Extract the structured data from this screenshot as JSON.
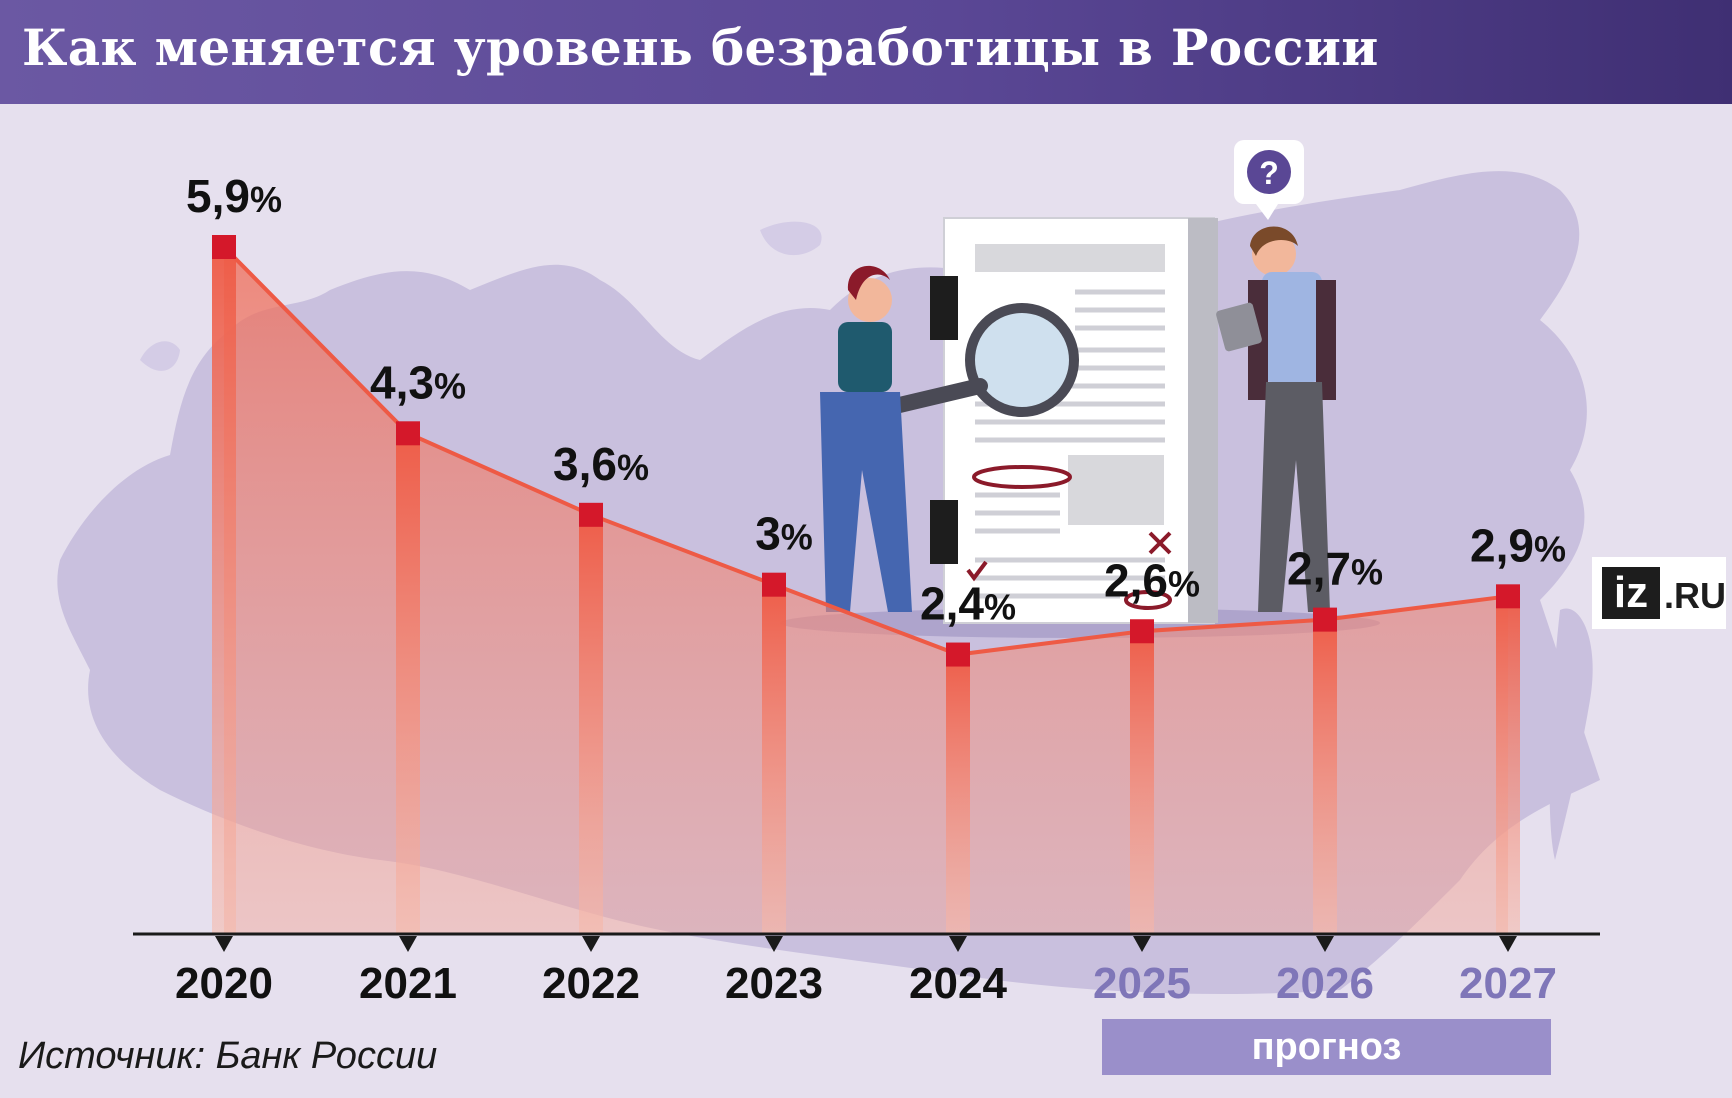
{
  "header": {
    "title": "Как меняется уровень безработицы в России"
  },
  "chart_data": {
    "type": "line",
    "title": "Как меняется уровень безработицы в России",
    "unit": "%",
    "categories": [
      "2020",
      "2021",
      "2022",
      "2023",
      "2024",
      "2025",
      "2026",
      "2027"
    ],
    "values": [
      5.9,
      4.3,
      3.6,
      3.0,
      2.4,
      2.6,
      2.7,
      2.9
    ],
    "value_labels": [
      "5,9",
      "4,3",
      "3,6",
      "3",
      "2,4",
      "2,6",
      "2,7",
      "2,9"
    ],
    "forecast_from": "2025",
    "forecast_label": "прогноз",
    "ylim": [
      0,
      6
    ],
    "grid": false,
    "colors": {
      "line": "#ee5a45",
      "marker": "#d4182a",
      "fill": "#f0806e",
      "year_actual": "#111111",
      "year_forecast": "#7f76b8",
      "forecast_band": "#9a8fca"
    }
  },
  "source": "Источник: Банк России",
  "logo": {
    "mark": "iz",
    "suffix": ".RU"
  },
  "illustration": {
    "speech_bubble": "?"
  }
}
